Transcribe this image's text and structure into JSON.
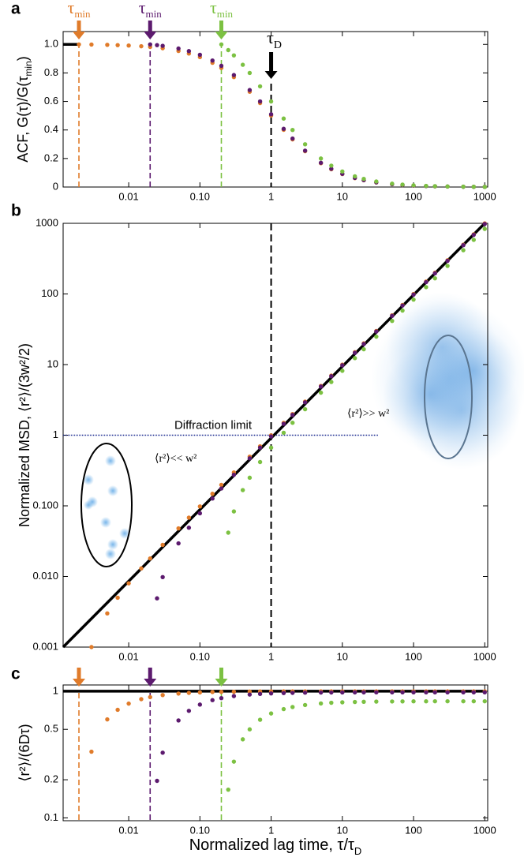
{
  "chart_data": [
    {
      "type": "scatter",
      "panel": "a",
      "ylabel": [
        "ACF, G(τ)/G(τ",
        "min",
        ")"
      ],
      "xlim": [
        0.0012,
        1100
      ],
      "ylim": [
        0,
        1.09
      ],
      "ylog": false,
      "xticks": [
        0.01,
        {
          "value": 0.1,
          "label": "0.10"
        },
        1,
        10,
        100,
        1000
      ],
      "yticks": [
        0,
        0.2,
        0.4,
        0.6,
        0.8,
        {
          "value": 1,
          "label": "1.0"
        }
      ],
      "reference_line": {
        "x": [
          0.0012,
          0.002
        ],
        "values": [
          1,
          1
        ]
      },
      "tau_d": 1,
      "tau_d_label": [
        "τ",
        "D"
      ],
      "tau_min_label": [
        "τ",
        "min"
      ],
      "tau_min_lines": true,
      "series": [
        {
          "color": "#e07b2a",
          "x": [
            0.002,
            0.003,
            0.005,
            0.007,
            0.01,
            0.015,
            0.02,
            0.03,
            0.05,
            0.07,
            0.1,
            0.15,
            0.2,
            0.3,
            0.5,
            0.7,
            1,
            1.5,
            2,
            3,
            5,
            7,
            10,
            15,
            20,
            30,
            50,
            70,
            100,
            150,
            200,
            300,
            500,
            700,
            1000
          ],
          "values": [
            1,
            0.999,
            0.997,
            0.995,
            0.992,
            0.987,
            0.982,
            0.973,
            0.954,
            0.936,
            0.911,
            0.871,
            0.835,
            0.771,
            0.668,
            0.589,
            0.501,
            0.401,
            0.334,
            0.251,
            0.167,
            0.125,
            0.0911,
            0.0626,
            0.0477,
            0.0323,
            0.0196,
            0.0141,
            0.00992,
            0.00664,
            0.00499,
            0.00333,
            0.002,
            0.00143,
            0.001
          ]
        },
        {
          "color": "#5c1a6e",
          "x": [
            0.02,
            0.025,
            0.03,
            0.05,
            0.07,
            0.1,
            0.15,
            0.2,
            0.3,
            0.5,
            0.7,
            1,
            1.5,
            2,
            3,
            5,
            7,
            10,
            15,
            20,
            30,
            50,
            70,
            100,
            150,
            200,
            300,
            500,
            700,
            1000
          ],
          "values": [
            1,
            0.995,
            0.99,
            0.971,
            0.953,
            0.927,
            0.887,
            0.85,
            0.785,
            0.68,
            0.6,
            0.51,
            0.408,
            0.34,
            0.255,
            0.17,
            0.128,
            0.0927,
            0.0638,
            0.0486,
            0.0329,
            0.02,
            0.0144,
            0.0101,
            0.00675,
            0.00507,
            0.00339,
            0.00204,
            0.00146,
            0.00102
          ]
        },
        {
          "color": "#7cc142",
          "x": [
            0.2,
            0.25,
            0.3,
            0.4,
            0.5,
            0.7,
            1,
            1.5,
            2,
            3,
            5,
            7,
            10,
            15,
            20,
            30,
            50,
            70,
            100,
            150,
            200,
            300,
            500,
            700,
            1000
          ],
          "values": [
            1,
            0.96,
            0.923,
            0.857,
            0.8,
            0.706,
            0.6,
            0.48,
            0.4,
            0.3,
            0.2,
            0.15,
            0.109,
            0.075,
            0.0571,
            0.0387,
            0.0235,
            0.0169,
            0.0119,
            0.00795,
            0.00597,
            0.00399,
            0.0024,
            0.00171,
            0.0012
          ]
        }
      ]
    },
    {
      "type": "scatter",
      "panel": "b",
      "ylabel": [
        "Normalized MSD, ⟨r²⟩/(3w²/2)"
      ],
      "xlim": [
        0.0012,
        1100
      ],
      "ylim": [
        0.001,
        1000
      ],
      "ylog": true,
      "xticks": [
        0.01,
        {
          "value": 0.1,
          "label": "0.10"
        },
        1,
        10,
        100,
        1000
      ],
      "yticks": [
        0.001,
        {
          "value": 0.01,
          "label": "0.010"
        },
        {
          "value": 0.1,
          "label": "0.100"
        },
        1,
        10,
        100,
        1000
      ],
      "reference_line": {
        "x": [
          0.0012,
          1000
        ],
        "values": [
          0.001,
          1000
        ]
      },
      "tau_d": 1,
      "reference_y": 1,
      "annotation": "Diffraction limit",
      "inset_labels": [
        "⟨r²⟩<< w²",
        "⟨r²⟩>> w²"
      ],
      "series": [
        {
          "color": "#e07b2a",
          "x": [
            0.002,
            0.003,
            0.005,
            0.007,
            0.01,
            0.015,
            0.02,
            0.03,
            0.05,
            0.07,
            0.1,
            0.15,
            0.2,
            0.3,
            0.5,
            0.7,
            1,
            1.5,
            2,
            3,
            5,
            7,
            10,
            15,
            20,
            30,
            50,
            70,
            100,
            150,
            200,
            300,
            500,
            700,
            1000
          ],
          "values": [
            null,
            0.001,
            0.003,
            0.005,
            0.008,
            0.013,
            0.018,
            0.028,
            0.048,
            0.068,
            0.098,
            0.148,
            0.198,
            0.297,
            0.497,
            0.697,
            0.996,
            1.495,
            1.994,
            2.99,
            4.99,
            6.98,
            9.98,
            14.97,
            19.96,
            29.9,
            49.9,
            69.9,
            99.8,
            149.7,
            199.6,
            299.4,
            499,
            699,
            998
          ]
        },
        {
          "color": "#5c1a6e",
          "x": [
            0.02,
            0.025,
            0.03,
            0.05,
            0.07,
            0.1,
            0.15,
            0.2,
            0.3,
            0.5,
            0.7,
            1,
            1.5,
            2,
            3,
            5,
            7,
            10,
            15,
            20,
            30,
            50,
            70,
            100,
            150,
            200,
            300,
            500,
            700,
            1000
          ],
          "values": [
            null,
            0.0049,
            0.0098,
            0.0294,
            0.049,
            0.0784,
            0.127,
            0.176,
            0.275,
            0.471,
            0.667,
            0.961,
            1.451,
            1.941,
            2.92,
            4.88,
            6.84,
            9.78,
            14.69,
            19.59,
            29.4,
            49,
            68.6,
            98,
            147,
            196.1,
            294.1,
            490.2,
            686.3,
            980.4
          ]
        },
        {
          "color": "#7cc142",
          "x": [
            0.2,
            0.25,
            0.3,
            0.4,
            0.5,
            0.7,
            1,
            1.5,
            2,
            3,
            5,
            7,
            10,
            15,
            20,
            30,
            50,
            70,
            100,
            150,
            200,
            300,
            500,
            700,
            1000
          ],
          "values": [
            null,
            0.0417,
            0.0833,
            0.167,
            0.25,
            0.417,
            0.667,
            1.083,
            1.5,
            2.333,
            4,
            5.667,
            8.167,
            12.33,
            16.5,
            24.83,
            41.5,
            58.17,
            83.17,
            124.8,
            166.5,
            249.8,
            416.5,
            583.2,
            833.2
          ]
        }
      ]
    },
    {
      "type": "scatter",
      "panel": "c",
      "ylabel": [
        "⟨r²⟩/(6Dτ)"
      ],
      "xlabel": [
        "Normalized lag time, τ/τ",
        "D"
      ],
      "xlim": [
        0.0012,
        1100
      ],
      "ylim": [
        0.095,
        1.12
      ],
      "ylog": true,
      "xticks": [
        0.01,
        {
          "value": 0.1,
          "label": "0.10"
        },
        1,
        10,
        100,
        1000
      ],
      "yticks": [
        0.1,
        0.2,
        0.5,
        1
      ],
      "reference_line": {
        "x": [
          0.0012,
          1000
        ],
        "values": [
          1,
          1
        ]
      },
      "tau_min_lines": true,
      "series": [
        {
          "color": "#e07b2a",
          "x": [
            0.002,
            0.003,
            0.005,
            0.007,
            0.01,
            0.015,
            0.02,
            0.03,
            0.05,
            0.07,
            0.1,
            0.15,
            0.2,
            0.3,
            0.5,
            0.7,
            1,
            1.5,
            2,
            3,
            5,
            7,
            10,
            15,
            20,
            30,
            50,
            70,
            100,
            150,
            200,
            300,
            500,
            700,
            1000
          ],
          "values": [
            null,
            0.333,
            0.599,
            0.713,
            0.798,
            0.865,
            0.898,
            0.932,
            0.958,
            0.97,
            0.978,
            0.985,
            0.988,
            0.991,
            0.994,
            0.995,
            0.996,
            0.997,
            0.997,
            0.997,
            0.998,
            0.998,
            0.998,
            0.998,
            0.998,
            0.998,
            0.998,
            0.998,
            0.998,
            0.998,
            0.998,
            0.998,
            0.998,
            0.998,
            0.998
          ]
        },
        {
          "color": "#5c1a6e",
          "x": [
            0.02,
            0.025,
            0.03,
            0.05,
            0.07,
            0.1,
            0.15,
            0.2,
            0.3,
            0.5,
            0.7,
            1,
            1.5,
            2,
            3,
            5,
            7,
            10,
            15,
            20,
            30,
            50,
            70,
            100,
            150,
            200,
            300,
            500,
            700,
            1000
          ],
          "values": [
            null,
            0.196,
            0.327,
            0.588,
            0.7,
            0.784,
            0.85,
            0.882,
            0.915,
            0.941,
            0.952,
            0.961,
            0.967,
            0.97,
            0.974,
            0.976,
            0.977,
            0.978,
            0.979,
            0.979,
            0.98,
            0.98,
            0.98,
            0.98,
            0.98,
            0.98,
            0.98,
            0.98,
            0.98,
            0.98
          ]
        },
        {
          "color": "#7cc142",
          "x": [
            0.2,
            0.25,
            0.3,
            0.4,
            0.5,
            0.7,
            1,
            1.5,
            2,
            3,
            5,
            7,
            10,
            15,
            20,
            30,
            50,
            70,
            100,
            150,
            200,
            300,
            500,
            700,
            1000
          ],
          "values": [
            null,
            0.167,
            0.278,
            0.417,
            0.5,
            0.595,
            0.667,
            0.722,
            0.75,
            0.778,
            0.8,
            0.81,
            0.817,
            0.822,
            0.825,
            0.828,
            0.83,
            0.831,
            0.832,
            0.832,
            0.833,
            0.833,
            0.833,
            0.833,
            0.833
          ]
        }
      ]
    }
  ]
}
